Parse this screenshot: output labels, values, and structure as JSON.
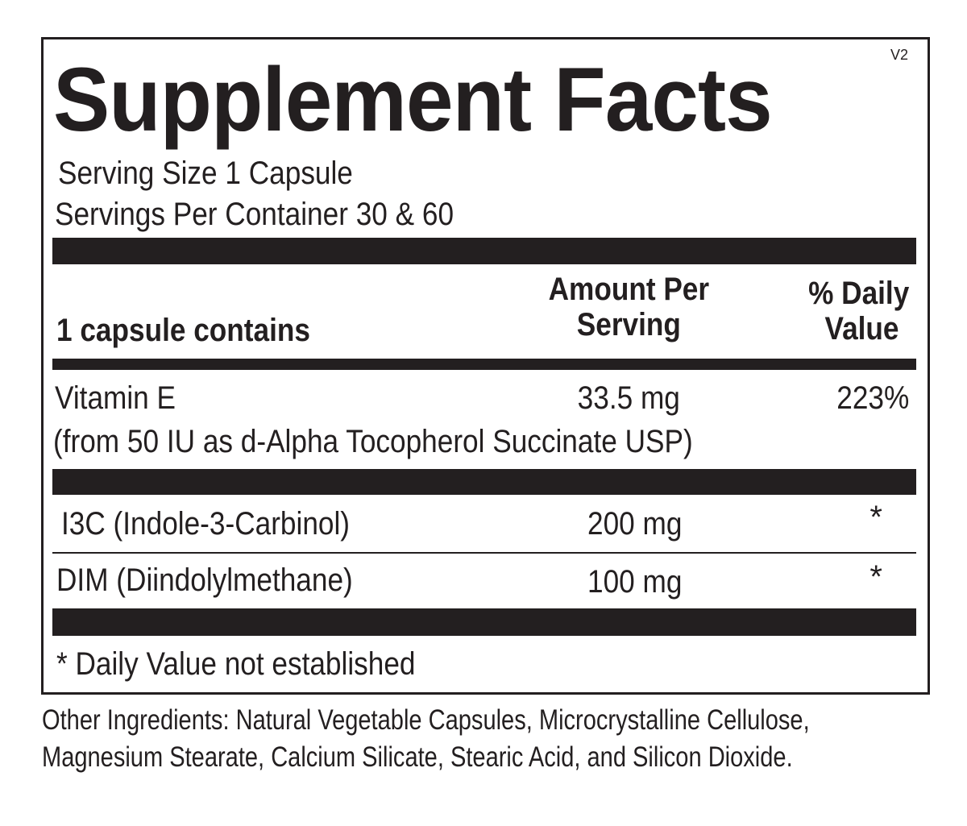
{
  "label": {
    "title": "Supplement Facts",
    "version": "V2",
    "serving_size": "Serving Size 1 Capsule",
    "servings_per_container": "Servings Per Container 30 & 60",
    "header": {
      "contains": "1 capsule contains",
      "amount_line1": "Amount Per",
      "amount_line2": "Serving",
      "dv_line1": "% Daily",
      "dv_line2": "Value"
    },
    "rows": [
      {
        "name": "Vitamin E",
        "sub": "(from 50 IU as d-Alpha Tocopherol Succinate USP)",
        "amount": "33.5 mg",
        "dv": "223%"
      },
      {
        "name": "I3C (Indole-3-Carbinol)",
        "amount": "200 mg",
        "dv": "*"
      },
      {
        "name": "DIM (Diindolylmethane)",
        "amount": "100 mg",
        "dv": "*"
      }
    ],
    "footnote": "* Daily Value not established"
  },
  "other_ingredients": {
    "line1": "Other Ingredients: Natural Vegetable Capsules, Microcrystalline Cellulose,",
    "line2": "Magnesium Stearate, Calcium Silicate, Stearic Acid, and Silicon Dioxide."
  }
}
